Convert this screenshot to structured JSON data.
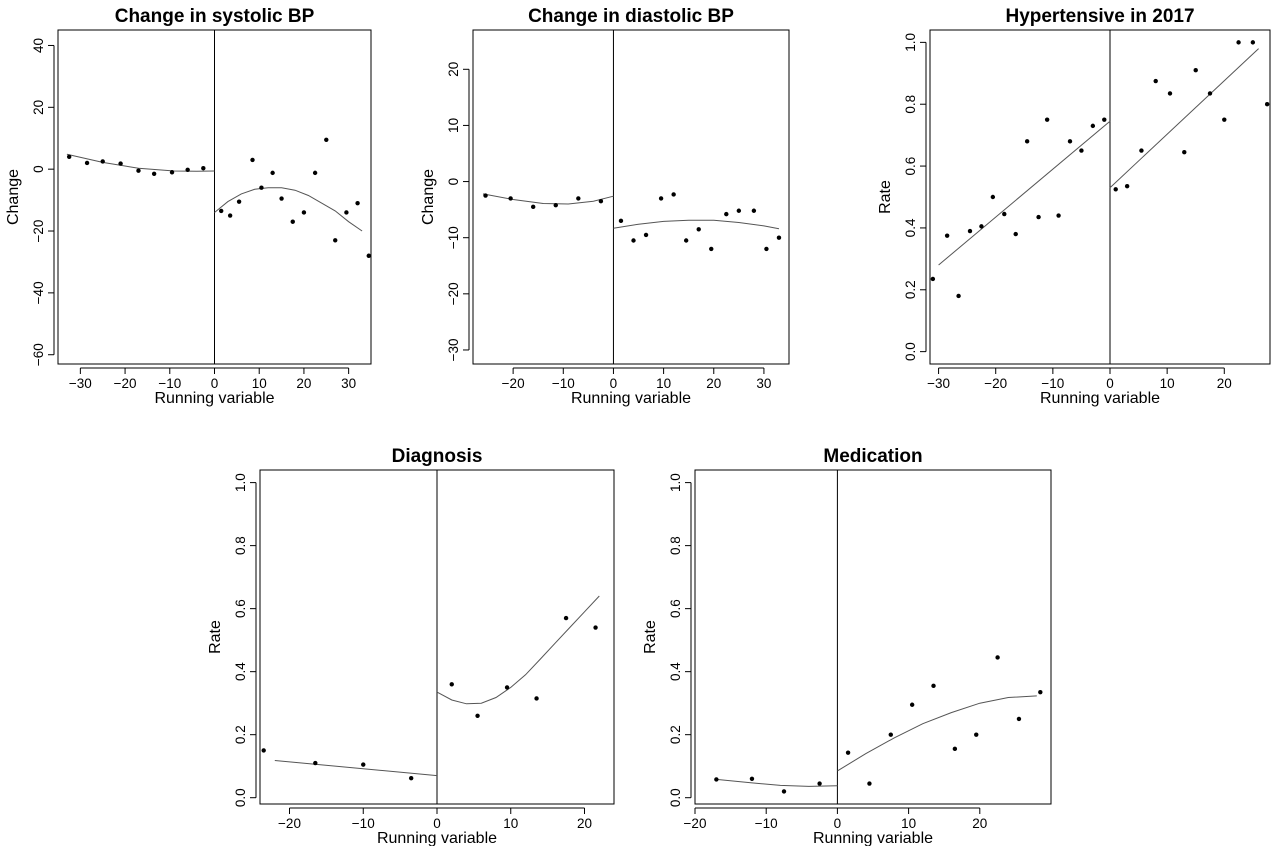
{
  "chart_data": [
    {
      "type": "scatter",
      "title": "Change in systolic BP",
      "xlabel": "Running variable",
      "ylabel": "Change",
      "xlim": [
        -35,
        35
      ],
      "ylim": [
        -63,
        45
      ],
      "xticks": [
        -30,
        -20,
        -10,
        0,
        10,
        20,
        30
      ],
      "yticks": [
        -60,
        -40,
        -20,
        0,
        20,
        40
      ],
      "cutoff": 0,
      "points": [
        [
          -32.5,
          4
        ],
        [
          -28.5,
          2
        ],
        [
          -25,
          2.5
        ],
        [
          -21,
          1.8
        ],
        [
          -17,
          -0.5
        ],
        [
          -13.5,
          -1.5
        ],
        [
          -9.5,
          -1
        ],
        [
          -6,
          -0.2
        ],
        [
          -2.5,
          0.3
        ],
        [
          1.5,
          -13.5
        ],
        [
          3.5,
          -15
        ],
        [
          5.5,
          -10.5
        ],
        [
          8.5,
          3
        ],
        [
          10.5,
          -6
        ],
        [
          13,
          -1.2
        ],
        [
          15,
          -9.5
        ],
        [
          17.5,
          -17
        ],
        [
          20,
          -14
        ],
        [
          22.5,
          -1.2
        ],
        [
          25,
          9.5
        ],
        [
          27,
          -23
        ],
        [
          29.5,
          -14
        ],
        [
          32,
          -11
        ],
        [
          34.5,
          -28
        ]
      ],
      "fit_left": [
        [
          -33,
          4.8
        ],
        [
          -25,
          2.2
        ],
        [
          -17,
          0.3
        ],
        [
          -9,
          -0.6
        ],
        [
          -4,
          -0.7
        ],
        [
          0,
          -0.6
        ]
      ],
      "fit_right": [
        [
          0,
          -14
        ],
        [
          3,
          -10.5
        ],
        [
          6,
          -8
        ],
        [
          9,
          -6.5
        ],
        [
          12,
          -6
        ],
        [
          15,
          -6
        ],
        [
          18,
          -6.8
        ],
        [
          21,
          -8.5
        ],
        [
          24,
          -11
        ],
        [
          27,
          -13.5
        ],
        [
          30,
          -17
        ],
        [
          33,
          -20
        ]
      ]
    },
    {
      "type": "scatter",
      "title": "Change in diastolic BP",
      "xlabel": "Running variable",
      "ylabel": "Change",
      "xlim": [
        -28,
        35
      ],
      "ylim": [
        -32.5,
        27
      ],
      "xticks": [
        -20,
        -10,
        0,
        10,
        20,
        30
      ],
      "yticks": [
        -30,
        -20,
        -10,
        0,
        10,
        20
      ],
      "cutoff": 0,
      "points": [
        [
          -25.5,
          -2.5
        ],
        [
          -20.5,
          -3
        ],
        [
          -16,
          -4.5
        ],
        [
          -11.5,
          -4.2
        ],
        [
          -7,
          -3
        ],
        [
          -2.5,
          -3.5
        ],
        [
          1.5,
          -7
        ],
        [
          4,
          -10.5
        ],
        [
          6.5,
          -9.5
        ],
        [
          9.5,
          -3
        ],
        [
          12,
          -2.3
        ],
        [
          14.5,
          -10.5
        ],
        [
          17,
          -8.5
        ],
        [
          19.5,
          -12
        ],
        [
          22.5,
          -5.8
        ],
        [
          25,
          -5.2
        ],
        [
          28,
          -5.2
        ],
        [
          30.5,
          -12
        ],
        [
          33,
          -10
        ]
      ],
      "fit_left": [
        [
          -26,
          -2.2
        ],
        [
          -20,
          -3.2
        ],
        [
          -14,
          -3.9
        ],
        [
          -9,
          -4
        ],
        [
          -4,
          -3.5
        ],
        [
          0,
          -2.6
        ]
      ],
      "fit_right": [
        [
          0,
          -8.3
        ],
        [
          5,
          -7.6
        ],
        [
          10,
          -7.1
        ],
        [
          15,
          -6.9
        ],
        [
          20,
          -6.9
        ],
        [
          25,
          -7.3
        ],
        [
          30,
          -7.9
        ],
        [
          33,
          -8.4
        ]
      ]
    },
    {
      "type": "scatter",
      "title": "Hypertensive in 2017",
      "xlabel": "Running variable",
      "ylabel": "Rate",
      "xlim": [
        -31.5,
        28
      ],
      "ylim": [
        -0.04,
        1.04
      ],
      "xticks": [
        -30,
        -20,
        -10,
        0,
        10,
        20
      ],
      "yticks": [
        0.0,
        0.2,
        0.4,
        0.6,
        0.8,
        1.0
      ],
      "ytick_labels": [
        "0.0",
        "0.2",
        "0.4",
        "0.6",
        "0.8",
        "1.0"
      ],
      "cutoff": 0,
      "points": [
        [
          -31,
          0.235
        ],
        [
          -28.5,
          0.375
        ],
        [
          -26.5,
          0.18
        ],
        [
          -24.5,
          0.39
        ],
        [
          -22.5,
          0.405
        ],
        [
          -20.5,
          0.5
        ],
        [
          -18.5,
          0.445
        ],
        [
          -16.5,
          0.38
        ],
        [
          -14.5,
          0.68
        ],
        [
          -12.5,
          0.435
        ],
        [
          -11,
          0.75
        ],
        [
          -9,
          0.44
        ],
        [
          -7,
          0.68
        ],
        [
          -5,
          0.65
        ],
        [
          -3,
          0.73
        ],
        [
          -1,
          0.75
        ],
        [
          1,
          0.525
        ],
        [
          3,
          0.535
        ],
        [
          5.5,
          0.65
        ],
        [
          8,
          0.875
        ],
        [
          10.5,
          0.835
        ],
        [
          13,
          0.645
        ],
        [
          15,
          0.91
        ],
        [
          17.5,
          0.835
        ],
        [
          20,
          0.75
        ],
        [
          22.5,
          1.0
        ],
        [
          25,
          1.0
        ],
        [
          27.5,
          0.8
        ]
      ],
      "fit_left": [
        [
          -30,
          0.28
        ],
        [
          0,
          0.745
        ]
      ],
      "fit_right": [
        [
          0,
          0.53
        ],
        [
          26,
          0.98
        ]
      ]
    },
    {
      "type": "scatter",
      "title": "Diagnosis",
      "xlabel": "Running variable",
      "ylabel": "Rate",
      "xlim": [
        -24,
        24
      ],
      "ylim": [
        -0.02,
        1.04
      ],
      "xticks": [
        -20,
        -10,
        0,
        10,
        20
      ],
      "yticks": [
        0.0,
        0.2,
        0.4,
        0.6,
        0.8,
        1.0
      ],
      "ytick_labels": [
        "0.0",
        "0.2",
        "0.4",
        "0.6",
        "0.8",
        "1.0"
      ],
      "cutoff": 0,
      "points": [
        [
          -23.5,
          0.15
        ],
        [
          -16.5,
          0.11
        ],
        [
          -10,
          0.105
        ],
        [
          -3.5,
          0.062
        ],
        [
          2,
          0.36
        ],
        [
          5.5,
          0.26
        ],
        [
          9.5,
          0.35
        ],
        [
          13.5,
          0.315
        ],
        [
          17.5,
          0.57
        ],
        [
          21.5,
          0.54
        ]
      ],
      "fit_left": [
        [
          -22,
          0.118
        ],
        [
          0,
          0.07
        ]
      ],
      "fit_right": [
        [
          0,
          0.335
        ],
        [
          2,
          0.31
        ],
        [
          4,
          0.298
        ],
        [
          6,
          0.3
        ],
        [
          8,
          0.318
        ],
        [
          10,
          0.35
        ],
        [
          12,
          0.39
        ],
        [
          14,
          0.44
        ],
        [
          16,
          0.49
        ],
        [
          18,
          0.54
        ],
        [
          20,
          0.59
        ],
        [
          22,
          0.64
        ]
      ]
    },
    {
      "type": "scatter",
      "title": "Medication",
      "xlabel": "Running variable",
      "ylabel": "Rate",
      "xlim": [
        -20,
        30
      ],
      "ylim": [
        -0.02,
        1.04
      ],
      "xticks": [
        -20,
        -10,
        0,
        10,
        20
      ],
      "yticks": [
        0.0,
        0.2,
        0.4,
        0.6,
        0.8,
        1.0
      ],
      "ytick_labels": [
        "0.0",
        "0.2",
        "0.4",
        "0.6",
        "0.8",
        "1.0"
      ],
      "cutoff": 0,
      "points": [
        [
          -17,
          0.058
        ],
        [
          -12,
          0.06
        ],
        [
          -7.5,
          0.02
        ],
        [
          -2.5,
          0.045
        ],
        [
          1.5,
          0.143
        ],
        [
          4.5,
          0.045
        ],
        [
          7.5,
          0.2
        ],
        [
          10.5,
          0.295
        ],
        [
          13.5,
          0.355
        ],
        [
          16.5,
          0.155
        ],
        [
          19.5,
          0.2
        ],
        [
          22.5,
          0.445
        ],
        [
          25.5,
          0.25
        ],
        [
          28.5,
          0.335
        ]
      ],
      "fit_left": [
        [
          -17,
          0.058
        ],
        [
          -12,
          0.047
        ],
        [
          -8,
          0.039
        ],
        [
          -4,
          0.036
        ],
        [
          0,
          0.038
        ]
      ],
      "fit_right": [
        [
          0,
          0.085
        ],
        [
          4,
          0.14
        ],
        [
          8,
          0.19
        ],
        [
          12,
          0.235
        ],
        [
          16,
          0.27
        ],
        [
          20,
          0.3
        ],
        [
          24,
          0.318
        ],
        [
          28,
          0.323
        ]
      ]
    }
  ]
}
